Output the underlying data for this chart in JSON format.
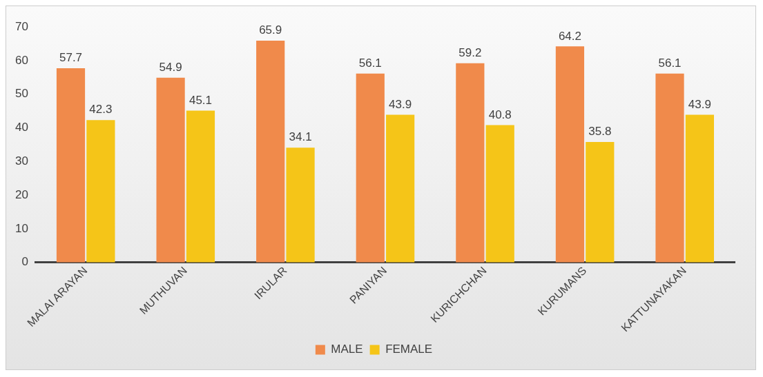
{
  "chart_data": {
    "type": "bar",
    "categories": [
      "MALAI ARAYAN",
      "MUTHUVAN",
      "IRULAR",
      "PANIYAN",
      "KURICHCHAN",
      "KURUMANS",
      "KATTUNAYAKAN"
    ],
    "series": [
      {
        "name": "MALE",
        "color": "#f08a4b",
        "values": [
          57.7,
          54.9,
          65.9,
          56.1,
          59.2,
          64.2,
          56.1
        ]
      },
      {
        "name": "FEMALE",
        "color": "#f5c518",
        "values": [
          42.3,
          45.1,
          34.1,
          43.9,
          40.8,
          35.8,
          43.9
        ]
      }
    ],
    "ylim": [
      0,
      70
    ],
    "yticks": [
      0,
      10,
      20,
      30,
      40,
      50,
      60,
      70
    ],
    "grid": false,
    "legend": "bottom",
    "data_labels": true
  }
}
